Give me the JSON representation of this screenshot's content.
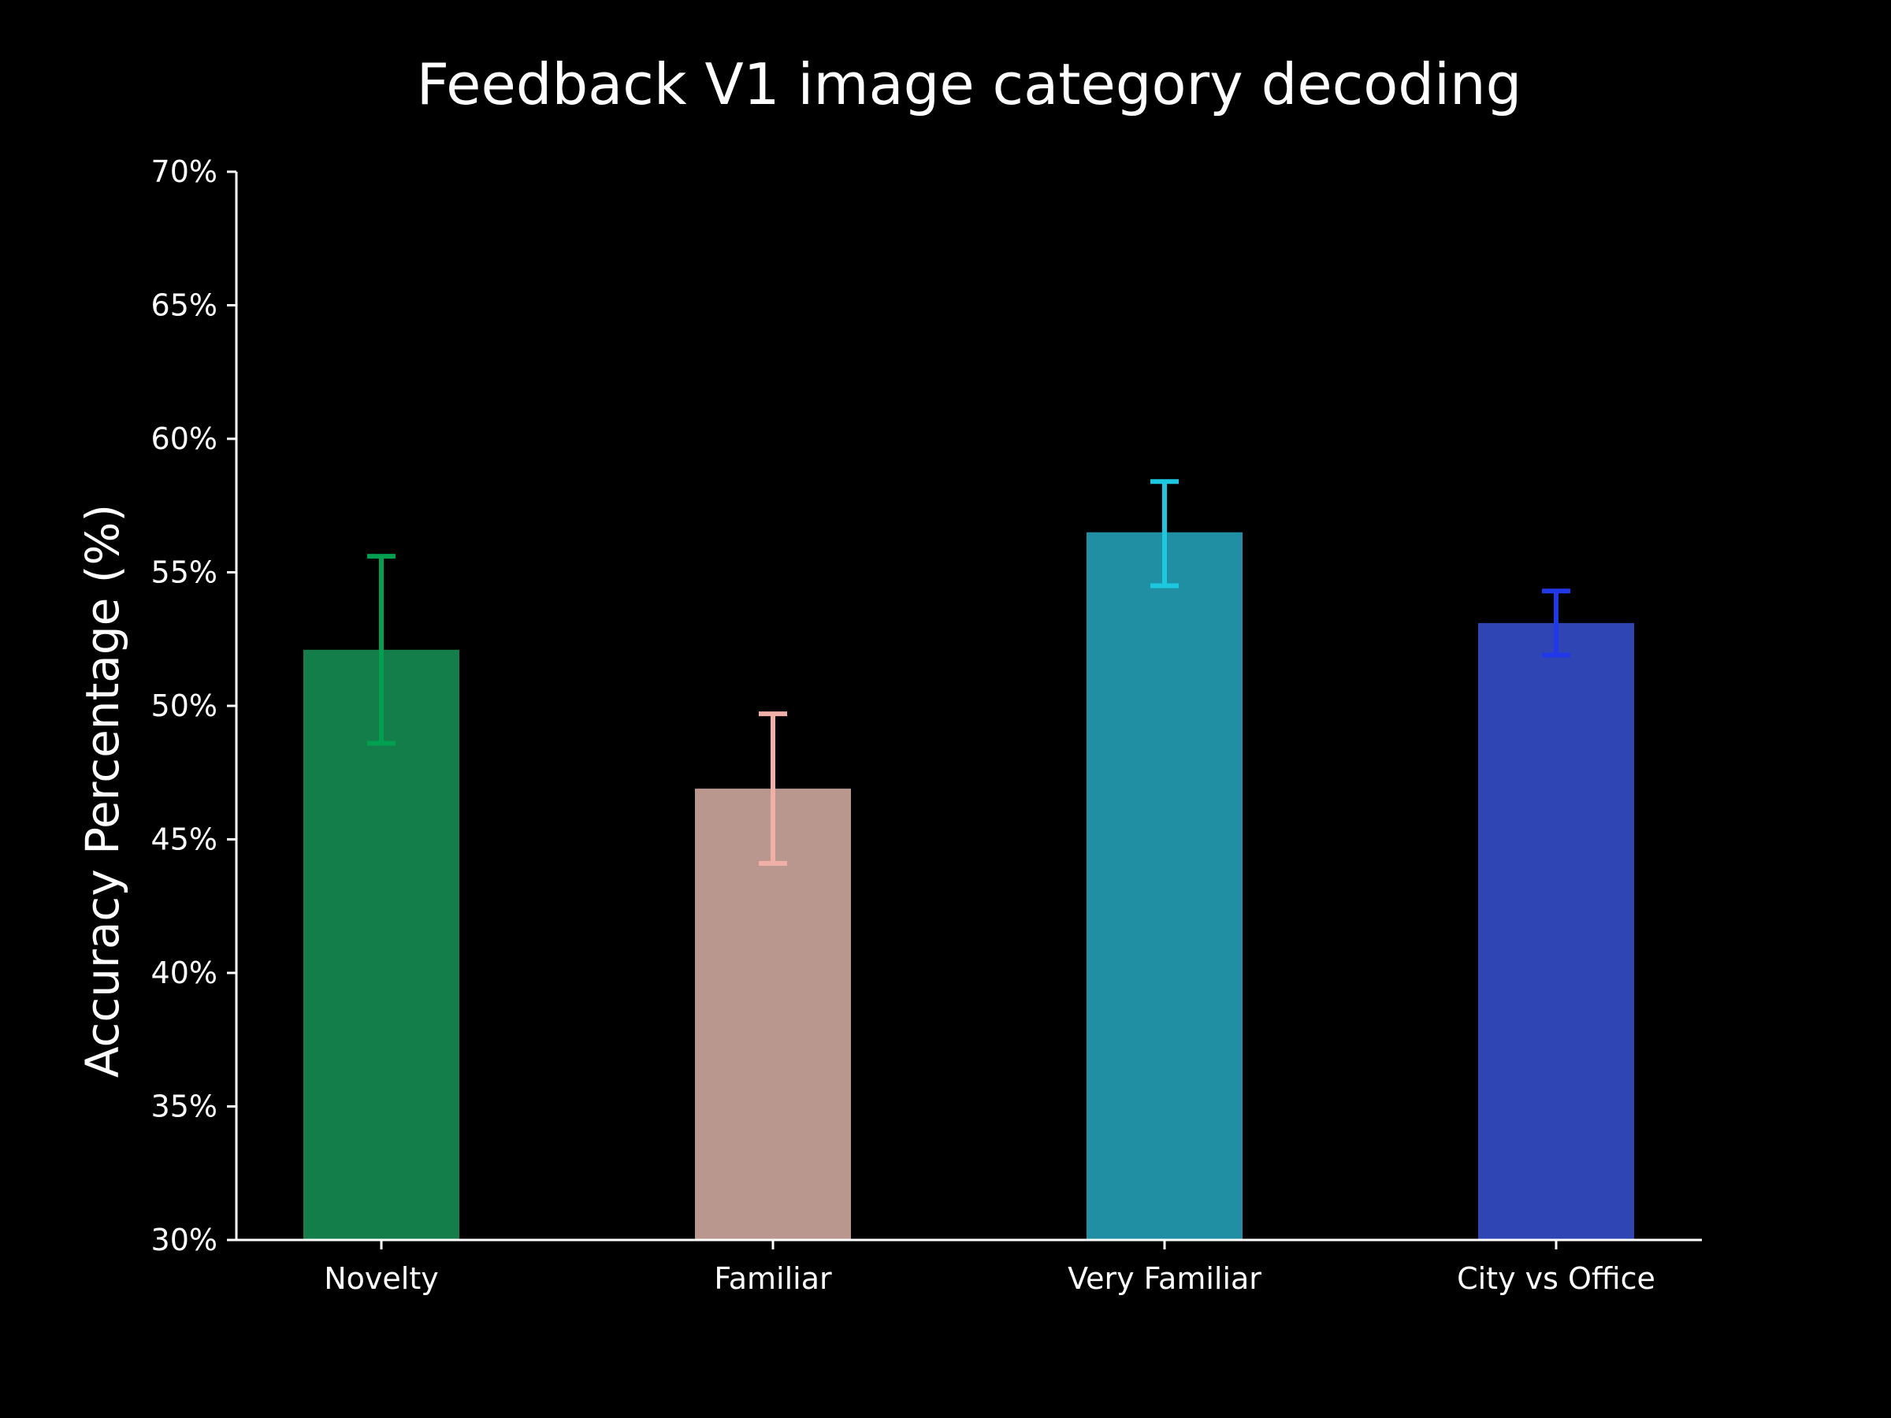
{
  "chart_data": {
    "type": "bar",
    "title": "Feedback V1 image category decoding",
    "xlabel": "",
    "ylabel": "Accuracy Percentage (%)",
    "ylim": [
      30,
      70
    ],
    "yticks": [
      30,
      35,
      40,
      45,
      50,
      55,
      60,
      65,
      70
    ],
    "ytick_labels": [
      "30%",
      "35%",
      "40%",
      "45%",
      "50%",
      "55%",
      "60%",
      "65%",
      "70%"
    ],
    "categories": [
      "Novelty",
      "Familiar",
      "Very Familiar",
      "City vs Office"
    ],
    "values": [
      52.1,
      46.9,
      56.5,
      53.1
    ],
    "error_low": [
      48.6,
      44.1,
      54.5,
      51.9
    ],
    "error_high": [
      55.6,
      49.7,
      58.4,
      54.3
    ],
    "bar_colors": [
      "#137e4a",
      "#b9968e",
      "#218fa3",
      "#2f45b4"
    ],
    "error_colors": [
      "#00a050",
      "#f0b0a8",
      "#1cc8e0",
      "#2038e8"
    ],
    "grid": false,
    "legend": "none"
  }
}
